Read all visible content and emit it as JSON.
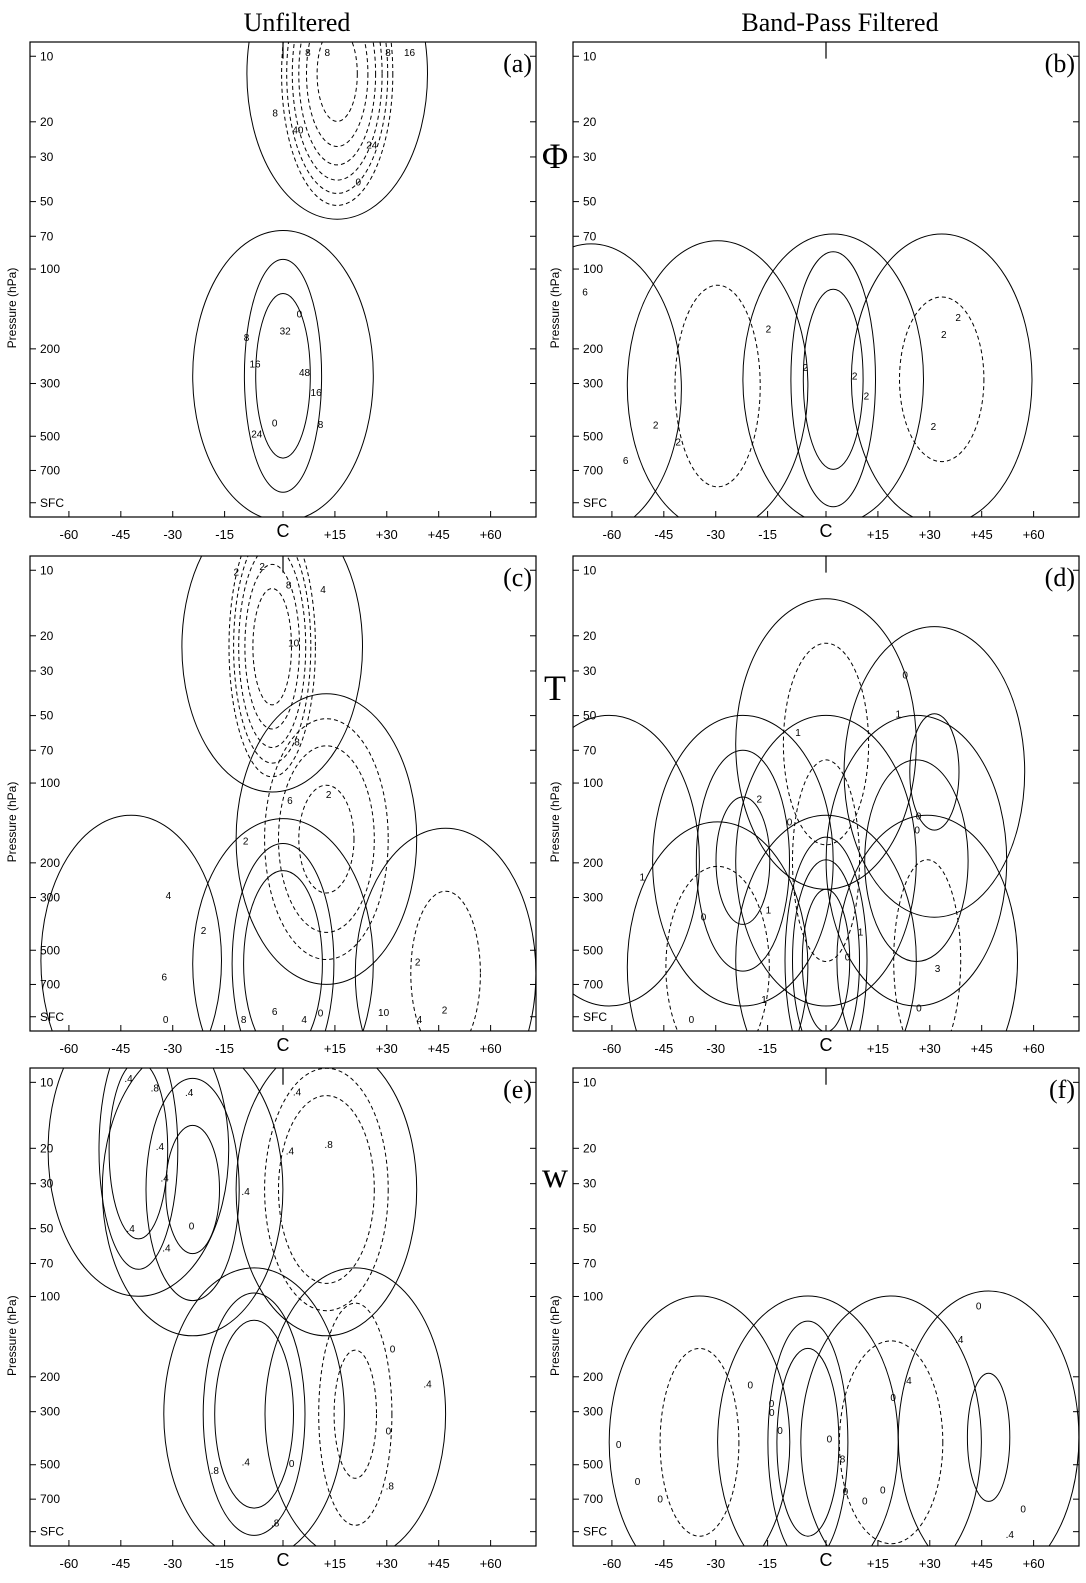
{
  "column_titles": [
    "Unfiltered",
    "Band-Pass Filtered"
  ],
  "row_labels": [
    "Φ",
    "T",
    "w"
  ],
  "chart_data": [
    {
      "type": "contour",
      "panel_label": "(a)",
      "field": "Φ",
      "column": "Unfiltered",
      "ylabel": "Pressure (hPa)",
      "yscale": "log",
      "y_ticks": [
        "10",
        "20",
        "30",
        "50",
        "70",
        "100",
        "200",
        "300",
        "500",
        "700",
        "SFC"
      ],
      "x_ticks": [
        "-60",
        "-45",
        "-30",
        "-15",
        "C",
        "+15",
        "+30",
        "+45",
        "+60"
      ],
      "xlim": [
        -70,
        70
      ],
      "positive": "solid",
      "negative": "dashed",
      "centers": [
        {
          "x": 0,
          "p": 270,
          "peak": 24
        },
        {
          "x": 15,
          "p": 12,
          "peak": -54
        }
      ],
      "levels": [
        -48,
        -40,
        -32,
        -24,
        -16,
        -8,
        0,
        8,
        16
      ],
      "contour_labels": [
        "48",
        "40",
        "32",
        "24",
        "16",
        "8",
        "0",
        "8",
        "16",
        "8",
        "0",
        "0",
        "8",
        "16",
        "24",
        "8",
        "8"
      ]
    },
    {
      "type": "contour",
      "panel_label": "(b)",
      "field": "Φ",
      "column": "Band-Pass Filtered",
      "ylabel": "Pressure (hPa)",
      "yscale": "log",
      "y_ticks": [
        "10",
        "20",
        "30",
        "50",
        "70",
        "100",
        "200",
        "300",
        "500",
        "700",
        "SFC"
      ],
      "x_ticks": [
        "-60",
        "-45",
        "-30",
        "-15",
        "C",
        "+15",
        "+30",
        "+45",
        "+60"
      ],
      "xlim": [
        -70,
        70
      ],
      "positive": "solid",
      "negative": "dashed",
      "centers": [
        {
          "x": 2,
          "p": 280,
          "peak": 10
        },
        {
          "x": -30,
          "p": 300,
          "peak": -4
        },
        {
          "x": 32,
          "p": 280,
          "peak": -3
        },
        {
          "x": -65,
          "p": 310,
          "peak": 1
        }
      ],
      "levels": [
        -2,
        2,
        6
      ],
      "contour_labels": [
        "2",
        "2",
        "2",
        "6",
        "2",
        "2",
        "2",
        "6",
        "2",
        "2",
        "2"
      ]
    },
    {
      "type": "contour",
      "panel_label": "(c)",
      "field": "T",
      "column": "Unfiltered",
      "ylabel": "Pressure (hPa)",
      "yscale": "log",
      "y_ticks": [
        "10",
        "20",
        "30",
        "50",
        "70",
        "100",
        "200",
        "300",
        "500",
        "700",
        "SFC"
      ],
      "x_ticks": [
        "-60",
        "-45",
        "-30",
        "-15",
        "C",
        "+15",
        "+30",
        "+45",
        "+60"
      ],
      "xlim": [
        -70,
        70
      ],
      "positive": "solid",
      "negative": "dashed",
      "centers": [
        {
          "x": -3,
          "p": 22,
          "peak": -12
        },
        {
          "x": 0,
          "p": 580,
          "peak": 7
        },
        {
          "x": 12,
          "p": 160,
          "peak": -7
        },
        {
          "x": -42,
          "p": 560,
          "peak": 1
        },
        {
          "x": 45,
          "p": 640,
          "peak": -3
        }
      ],
      "levels": [
        -10,
        -8,
        -6,
        -4,
        -2,
        0,
        2,
        4
      ],
      "contour_labels": [
        "10",
        "8",
        "2",
        "0",
        "2",
        "4",
        "6",
        "8",
        "6",
        "10",
        "8",
        "4",
        "6",
        "2",
        "4",
        "2",
        "0",
        "2",
        "4",
        "2",
        "2"
      ]
    },
    {
      "type": "contour",
      "panel_label": "(d)",
      "field": "T",
      "column": "Band-Pass Filtered",
      "ylabel": "Pressure (hPa)",
      "yscale": "log",
      "y_ticks": [
        "10",
        "20",
        "30",
        "50",
        "70",
        "100",
        "200",
        "300",
        "500",
        "700",
        "SFC"
      ],
      "x_ticks": [
        "-60",
        "-45",
        "-30",
        "-15",
        "C",
        "+15",
        "+30",
        "+45",
        "+60"
      ],
      "xlim": [
        -70,
        70
      ],
      "positive": "solid",
      "negative": "dashed",
      "centers": [
        {
          "x": 0,
          "p": 560,
          "peak": 4
        },
        {
          "x": -23,
          "p": 200,
          "peak": 2.5
        },
        {
          "x": 25,
          "p": 200,
          "peak": 2
        },
        {
          "x": 0,
          "p": 200,
          "peak": -2
        },
        {
          "x": 0,
          "p": 60,
          "peak": -2
        },
        {
          "x": -30,
          "p": 600,
          "peak": -2
        },
        {
          "x": 28,
          "p": 560,
          "peak": -2
        },
        {
          "x": 30,
          "p": 80,
          "peak": 1.2
        },
        {
          "x": -60,
          "p": 200,
          "peak": -1
        }
      ],
      "levels": [
        -1,
        0,
        1,
        2,
        3
      ],
      "contour_labels": [
        "0",
        "0",
        "0",
        "1",
        "1",
        "1",
        "0",
        "0",
        "1",
        "1",
        "2",
        "3",
        "0",
        "1",
        "0",
        "0"
      ]
    },
    {
      "type": "contour",
      "panel_label": "(e)",
      "field": "w",
      "column": "Unfiltered",
      "ylabel": "Pressure (hPa)",
      "yscale": "log",
      "y_ticks": [
        "10",
        "20",
        "30",
        "50",
        "70",
        "100",
        "200",
        "300",
        "500",
        "700",
        "SFC"
      ],
      "x_ticks": [
        "-60",
        "-45",
        "-30",
        "-15",
        "C",
        "+15",
        "+30",
        "+45",
        "+60"
      ],
      "xlim": [
        -70,
        70
      ],
      "positive": "solid",
      "negative": "dashed",
      "centers": [
        {
          "x": -40,
          "p": 20,
          "peak": 1.3
        },
        {
          "x": -8,
          "p": 300,
          "peak": 1.4
        },
        {
          "x": 12,
          "p": 30,
          "peak": -1.4
        },
        {
          "x": 20,
          "p": 300,
          "peak": -1.0
        },
        {
          "x": -25,
          "p": 30,
          "peak": 1.0
        }
      ],
      "levels": [
        -0.8,
        -0.4,
        0,
        0.4,
        0.8
      ],
      "contour_labels": [
        ".4",
        ".8",
        ".8",
        ".8",
        ".4",
        ".4",
        ".4",
        ".4",
        "0",
        ".4",
        ".8",
        ".8",
        ".4",
        ".4",
        ".4",
        ".4",
        "0",
        ".4",
        "0",
        "0"
      ]
    },
    {
      "type": "contour",
      "panel_label": "(f)",
      "field": "w",
      "column": "Band-Pass Filtered",
      "ylabel": "Pressure (hPa)",
      "yscale": "log",
      "y_ticks": [
        "10",
        "20",
        "30",
        "50",
        "70",
        "100",
        "200",
        "300",
        "500",
        "700",
        "SFC"
      ],
      "x_ticks": [
        "-60",
        "-45",
        "-30",
        "-15",
        "C",
        "+15",
        "+30",
        "+45",
        "+60"
      ],
      "xlim": [
        -70,
        70
      ],
      "positive": "solid",
      "negative": "dashed",
      "centers": [
        {
          "x": -5,
          "p": 400,
          "peak": 1.4
        },
        {
          "x": -35,
          "p": 400,
          "peak": -0.7
        },
        {
          "x": 18,
          "p": 400,
          "peak": -0.8
        },
        {
          "x": 45,
          "p": 380,
          "peak": 0.5
        }
      ],
      "levels": [
        -0.8,
        -0.4,
        0,
        0.4,
        0.8
      ],
      "contour_labels": [
        "0",
        "0",
        "0",
        "0",
        "0",
        "0",
        "0",
        ".4",
        ".8",
        "0",
        ".4",
        ".4",
        "0",
        "0",
        "0",
        "0",
        "0",
        "0"
      ]
    }
  ]
}
